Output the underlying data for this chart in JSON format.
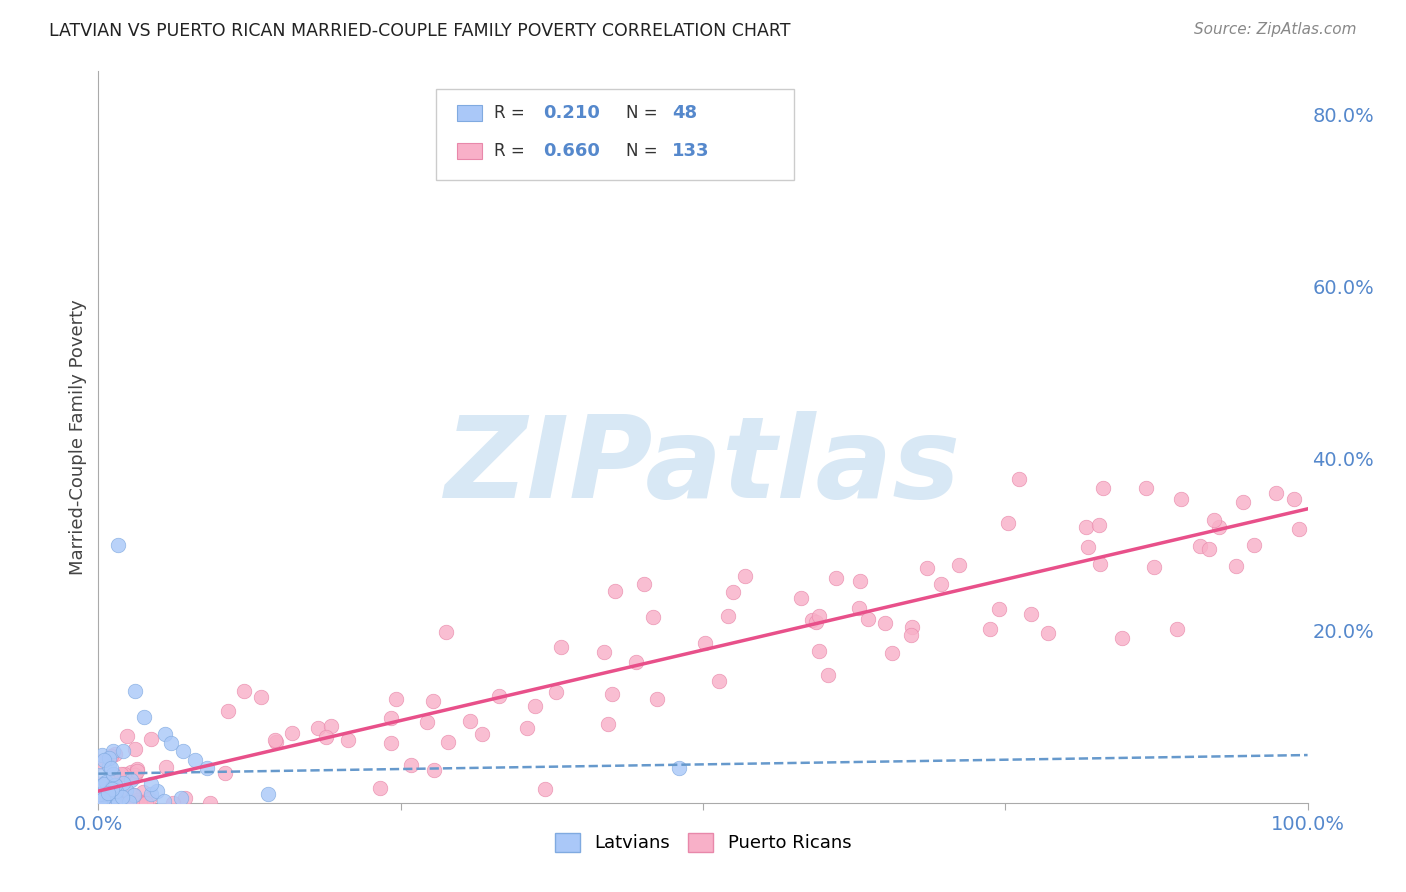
{
  "title": "LATVIAN VS PUERTO RICAN MARRIED-COUPLE FAMILY POVERTY CORRELATION CHART",
  "source": "Source: ZipAtlas.com",
  "ylabel": "Married-Couple Family Poverty",
  "latvian_color": "#aac8f8",
  "latvian_edge_color": "#80aae0",
  "puerto_rican_color": "#f8b0c8",
  "puerto_rican_edge_color": "#e888aa",
  "latvian_line_color": "#6699cc",
  "puerto_rican_line_color": "#e8508a",
  "R_latvian": 0.21,
  "N_latvian": 48,
  "R_puerto_rican": 0.66,
  "N_puerto_rican": 133,
  "legend_label_latvian": "Latvians",
  "legend_label_puerto_rican": "Puerto Ricans",
  "xlim": [
    0.0,
    1.0
  ],
  "ylim": [
    0.0,
    0.85
  ],
  "yticks": [
    0.2,
    0.4,
    0.6,
    0.8
  ],
  "title_color": "#222222",
  "axis_label_color": "#444444",
  "tick_color": "#5588cc",
  "grid_color": "#cccccc",
  "watermark_color": "#d8e8f5",
  "background_color": "#ffffff"
}
